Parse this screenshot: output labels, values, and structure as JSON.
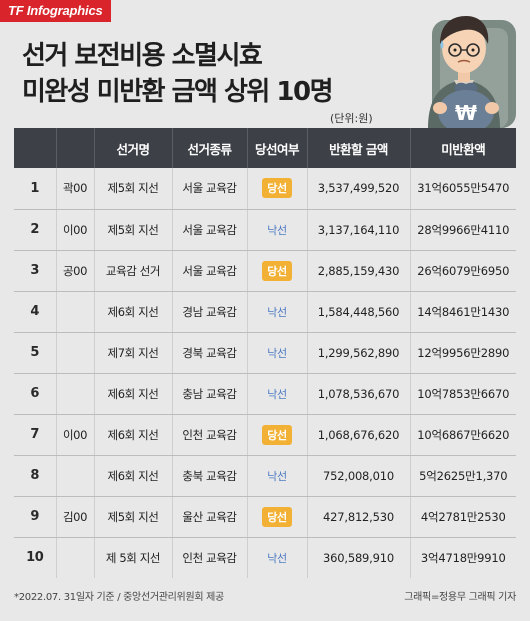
{
  "brand": "TF Infographics",
  "title_lines": [
    "선거 보전비용 소멸시효",
    "미완성 미반환 금액 상위 10명"
  ],
  "unit": "(단위:원)",
  "columns": [
    "",
    "",
    "선거명",
    "선거종류",
    "당선여부",
    "반환할 금액",
    "미반환액"
  ],
  "rows": [
    {
      "rank": "1",
      "name": "곽00",
      "election": "제5회 지선",
      "type": "서울 교육감",
      "result": "당선",
      "won": true,
      "refund": "3,537,499,520",
      "unpaid": "31억6055만5470"
    },
    {
      "rank": "2",
      "name": "이00",
      "election": "제5회 지선",
      "type": "서울 교육감",
      "result": "낙선",
      "won": false,
      "refund": "3,137,164,110",
      "unpaid": "28억9966만4110"
    },
    {
      "rank": "3",
      "name": "공00",
      "election": "교육감 선거",
      "type": "서울 교육감",
      "result": "당선",
      "won": true,
      "refund": "2,885,159,430",
      "unpaid": "26억6079만6950"
    },
    {
      "rank": "4",
      "name": "",
      "election": "제6회 지선",
      "type": "경남 교육감",
      "result": "낙선",
      "won": false,
      "refund": "1,584,448,560",
      "unpaid": "14억8461만1430"
    },
    {
      "rank": "5",
      "name": "",
      "election": "제7회 지선",
      "type": "경북 교육감",
      "result": "낙선",
      "won": false,
      "refund": "1,299,562,890",
      "unpaid": "12억9956만2890"
    },
    {
      "rank": "6",
      "name": "",
      "election": "제6회 지선",
      "type": "충남 교육감",
      "result": "낙선",
      "won": false,
      "refund": "1,078,536,670",
      "unpaid": "10억7853만6670"
    },
    {
      "rank": "7",
      "name": "이00",
      "election": "제6회 지선",
      "type": "인천 교육감",
      "result": "당선",
      "won": true,
      "refund": "1,068,676,620",
      "unpaid": "10억6867만6620"
    },
    {
      "rank": "8",
      "name": "",
      "election": "제6회 지선",
      "type": "충북 교육감",
      "result": "낙선",
      "won": false,
      "refund": "752,008,010",
      "unpaid": "5억2625만1,370"
    },
    {
      "rank": "9",
      "name": "김00",
      "election": "제5회 지선",
      "type": "울산 교육감",
      "result": "당선",
      "won": true,
      "refund": "427,812,530",
      "unpaid": "4억2781만2530"
    },
    {
      "rank": "10",
      "name": "",
      "election": "제 5회 지선",
      "type": "인천 교육감",
      "result": "낙선",
      "won": false,
      "refund": "360,589,910",
      "unpaid": "3억4718만9910"
    }
  ],
  "footer": {
    "source": "*2022.07. 31일자 기준 / 중앙선거관리위원회 제공",
    "credit": "그래픽=정용무 그래픽 기자"
  },
  "colors": {
    "header_bg": "#3d4047",
    "win_badge": "#f2b134",
    "lose_text": "#4d7bc2",
    "brand_bg": "#d9242b",
    "money_bag": "#6b7f96"
  },
  "illustration": {
    "money_symbol": "₩"
  }
}
